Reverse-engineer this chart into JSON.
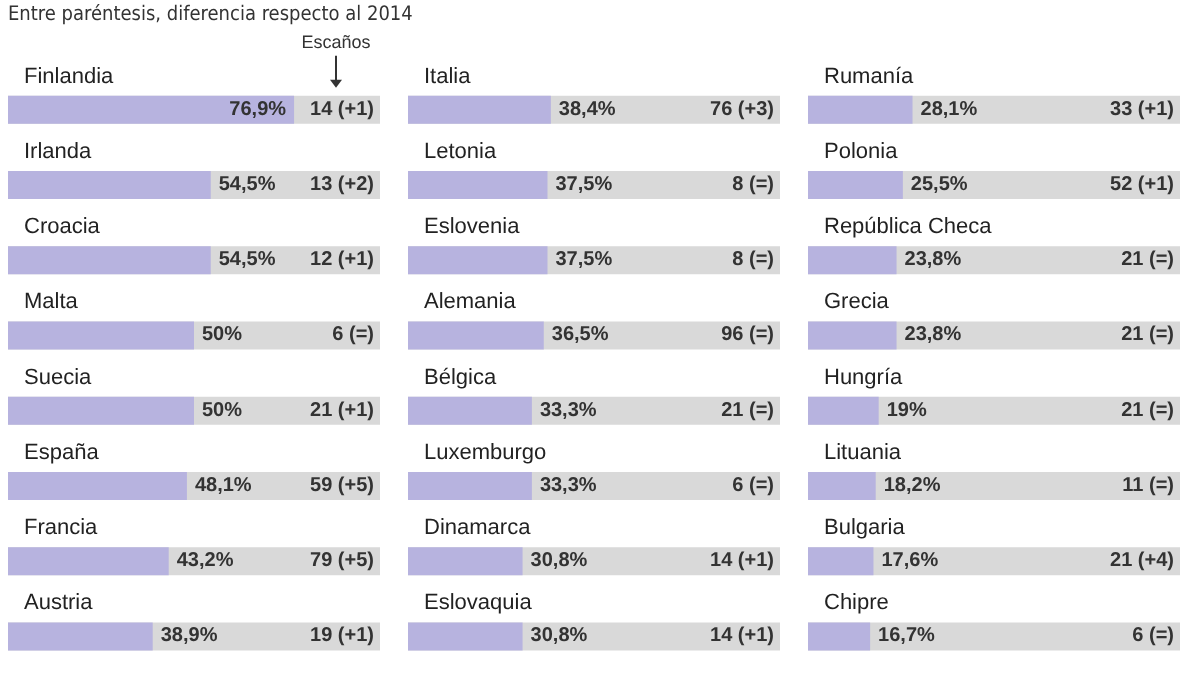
{
  "chart_data": [
    {
      "type": "bar",
      "orientation": "horizontal",
      "subtitle": "Entre paréntesis, diferencia respecto al 2014",
      "categories": [
        "Finlandia",
        "Irlanda",
        "Croacia",
        "Malta",
        "Suecia",
        "España",
        "Francia",
        "Austria"
      ],
      "values": [
        76.9,
        54.5,
        54.5,
        50,
        50,
        48.1,
        43.2,
        38.9
      ],
      "value_labels": [
        "76,9%",
        "54,5%",
        "54,5%",
        "50%",
        "50%",
        "48,1%",
        "43,2%",
        "38,9%"
      ],
      "color": "#b7b3df",
      "xlim": [
        0,
        100
      ],
      "tick_labels": "y",
      "annotations": [
        "Escaños",
        "14 (+1)",
        "13 (+2)",
        "12 (+1)",
        "6 (=)",
        "21 (+1)",
        "59 (+5)",
        "79 (+5)",
        "19 (+1)"
      ]
    },
    {
      "type": "bar",
      "orientation": "horizontal",
      "categories": [
        "Italia",
        "Letonia",
        "Eslovenia",
        "Alemania",
        "Bélgica",
        "Luxemburgo",
        "Dinamarca",
        "Eslovaquia"
      ],
      "values": [
        38.4,
        37.5,
        37.5,
        36.5,
        33.3,
        33.3,
        30.8,
        30.8
      ],
      "value_labels": [
        "38,4%",
        "37,5%",
        "37,5%",
        "36,5%",
        "33,3%",
        "33,3%",
        "30,8%",
        "30,8%"
      ],
      "color": "#b7b3df",
      "xlim": [
        0,
        100
      ],
      "tick_labels": "y",
      "annotations": [
        "76 (+3)",
        "8 (=)",
        "8 (=)",
        "96 (=)",
        "21 (=)",
        "6 (=)",
        "14 (+1)",
        "14 (+1)"
      ]
    },
    {
      "type": "bar",
      "orientation": "horizontal",
      "categories": [
        "Rumanía",
        "Polonia",
        "República Checa",
        "Grecia",
        "Hungría",
        "Lituania",
        "Bulgaria",
        "Chipre"
      ],
      "values": [
        28.1,
        25.5,
        23.8,
        23.8,
        19,
        18.2,
        17.6,
        16.7
      ],
      "value_labels": [
        "28,1%",
        "25,5%",
        "23,8%",
        "23,8%",
        "19%",
        "18,2%",
        "17,6%",
        "16,7%"
      ],
      "color": "#b7b3df",
      "xlim": [
        0,
        100
      ],
      "tick_labels": "y",
      "annotations": [
        "33 (+1)",
        "52 (+1)",
        "21 (=)",
        "21 (=)",
        "21 (=)",
        "11 (=)",
        "21 (+4)",
        "6 (=)"
      ]
    }
  ]
}
